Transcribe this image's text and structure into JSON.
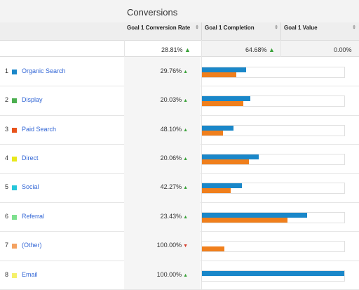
{
  "header": {
    "title": "Conversions",
    "columns": [
      "Goal 1 Conversion Rate",
      "Goal 1 Completion",
      "Goal 1 Value"
    ]
  },
  "summary": {
    "conversion_rate": "28.81%",
    "completion": "64.68%",
    "value": "0.00%"
  },
  "colors": {
    "blue": "#1a87c9",
    "orange": "#f07f1c",
    "up": "#3aa23a",
    "down": "#d43c2a"
  },
  "rows": [
    {
      "num": "1",
      "label": "Organic Search",
      "color": "#1a87c9",
      "rate": "29.76%",
      "trend": "up",
      "blue": 0.31,
      "orange": 0.24
    },
    {
      "num": "2",
      "label": "Display",
      "color": "#4caf50",
      "rate": "20.03%",
      "trend": "up",
      "blue": 0.34,
      "orange": 0.29
    },
    {
      "num": "3",
      "label": "Paid Search",
      "color": "#e8541c",
      "rate": "48.10%",
      "trend": "up",
      "blue": 0.22,
      "orange": 0.15
    },
    {
      "num": "4",
      "label": "Direct",
      "color": "#e8e81c",
      "rate": "20.06%",
      "trend": "up",
      "blue": 0.4,
      "orange": 0.33
    },
    {
      "num": "5",
      "label": "Social",
      "color": "#26c6da",
      "rate": "42.27%",
      "trend": "up",
      "blue": 0.28,
      "orange": 0.2
    },
    {
      "num": "6",
      "label": "Referral",
      "color": "#7ee08f",
      "rate": "23.43%",
      "trend": "up",
      "blue": 0.74,
      "orange": 0.6
    },
    {
      "num": "7",
      "label": "(Other)",
      "color": "#f4a261",
      "rate": "100.00%",
      "trend": "down",
      "blue": 0.0,
      "orange": 0.16
    },
    {
      "num": "8",
      "label": "Email",
      "color": "#f5f06a",
      "rate": "100.00%",
      "trend": "up",
      "blue": 1.0,
      "orange": 0.0
    }
  ]
}
